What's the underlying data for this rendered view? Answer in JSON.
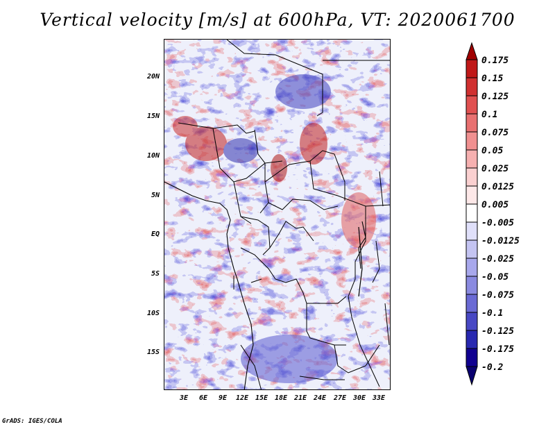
{
  "title": "Vertical velocity [m/s] at 600hPa, VT: 2020061700",
  "credit": "GrADS: IGES/COLA",
  "latitude_labels": [
    "20N",
    "15N",
    "10N",
    "5N",
    "EQ",
    "5S",
    "10S",
    "15S"
  ],
  "longitude_labels": [
    "3E",
    "6E",
    "9E",
    "12E",
    "15E",
    "18E",
    "21E",
    "24E",
    "27E",
    "30E",
    "33E"
  ],
  "colorbar": {
    "levels": [
      "0.175",
      "0.15",
      "0.125",
      "0.1",
      "0.075",
      "0.05",
      "0.025",
      "0.0125",
      "0.005",
      "-0.005",
      "-0.0125",
      "-0.025",
      "-0.05",
      "-0.075",
      "-0.1",
      "-0.125",
      "-0.175",
      "-0.2"
    ],
    "colors": [
      "#a00000",
      "#c01818",
      "#d03030",
      "#e05050",
      "#e87070",
      "#f09090",
      "#f6b0b0",
      "#fad0d0",
      "#fde8e8",
      "#ffffff",
      "#e0e0fa",
      "#c4c4f2",
      "#a8a8ec",
      "#8a8ae0",
      "#6a6ad4",
      "#4848c4",
      "#2828b0",
      "#100090",
      "#0a0070"
    ]
  },
  "map_extent": {
    "lon_min": 0,
    "lon_max": 34.5,
    "lat_min": -19.7,
    "lat_max": 24.8
  }
}
